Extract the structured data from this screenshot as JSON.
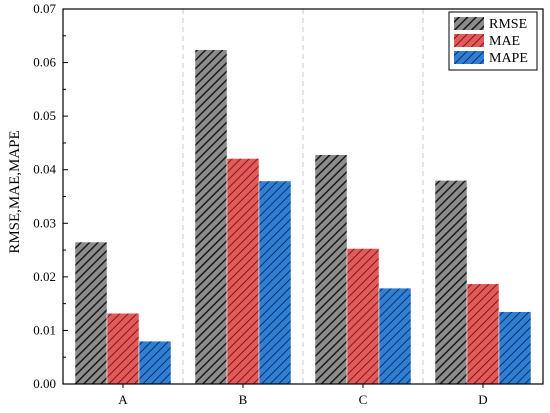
{
  "chart_data": {
    "type": "bar",
    "categories": [
      "A",
      "B",
      "C",
      "D"
    ],
    "series": [
      {
        "name": "RMSE",
        "values": [
          0.0265,
          0.0624,
          0.0428,
          0.038
        ]
      },
      {
        "name": "MAE",
        "values": [
          0.0132,
          0.0421,
          0.0253,
          0.0187
        ]
      },
      {
        "name": "MAPE",
        "values": [
          0.008,
          0.0379,
          0.0179,
          0.0135
        ]
      }
    ],
    "ylabel": "RMSE,MAE,MAPE",
    "xlabel": "",
    "ylim": [
      0,
      0.07
    ],
    "yticks": [
      "0.00",
      "0.01",
      "0.02",
      "0.03",
      "0.04",
      "0.05",
      "0.06",
      "0.07"
    ],
    "legend_position": "top-right",
    "grid": "vertical dashed separators between categories",
    "colors": {
      "RMSE": {
        "fill": "#8c8c8c",
        "hatch": "#1a1a1a"
      },
      "MAE": {
        "fill": "#e35a5a",
        "hatch": "#7a1a1a"
      },
      "MAPE": {
        "fill": "#2f7fd3",
        "hatch": "#0d2f6e"
      }
    }
  }
}
